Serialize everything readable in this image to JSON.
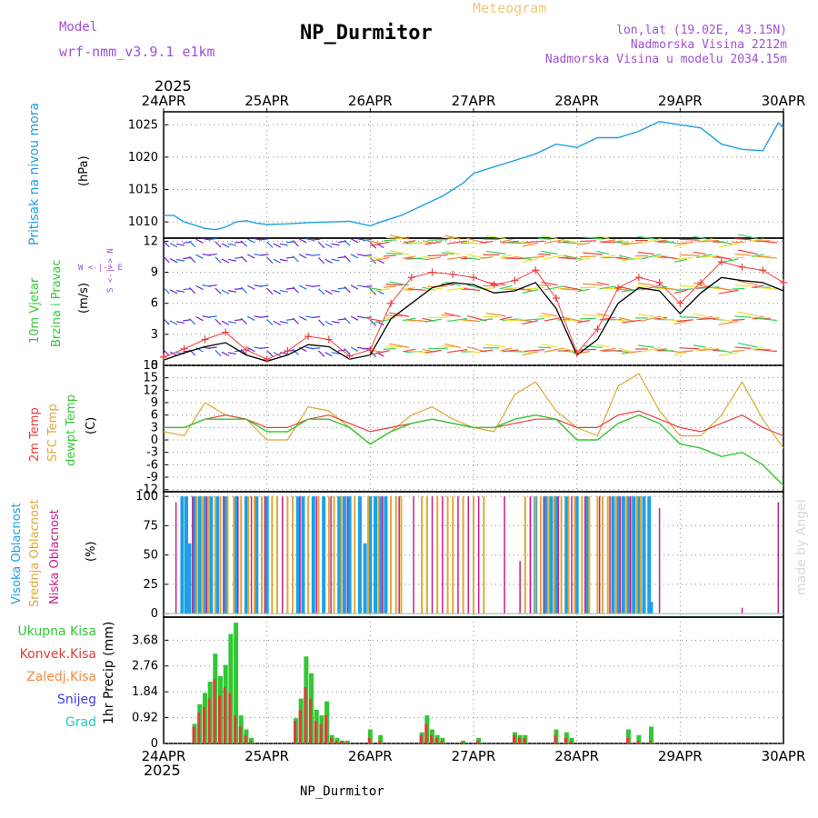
{
  "header": {
    "model_label": "Model",
    "model_name": "wrf-nmm_v3.9.1 e1km",
    "meteogram_label": "Meteogram",
    "station_title": "NP_Durmitor",
    "coords": "lon,lat (19.02E, 43.15N)",
    "elevation": "Nadmorska Visina 2212m",
    "model_elevation": "Nadmorska Visina u modelu 2034.15m",
    "year_top": "2025",
    "year_bottom": "2025",
    "footer": "NP_Durmitor",
    "watermark": "made by Angel"
  },
  "colors": {
    "pressure": "#1ca0e6",
    "wind_speed": "#000000",
    "wind_gust": "#f03c3c",
    "temp2m": "#f03c3c",
    "sfc_temp": "#e0a832",
    "dewpt": "#32c832",
    "cloud_high": "#1ca0e6",
    "cloud_mid": "#e0a832",
    "cloud_low": "#c81e8c",
    "precip_total": "#32c832",
    "precip_conv": "#e03c3c",
    "precip_frozen": "#f08c3c",
    "snow": "#3c3ce0",
    "graupel": "#1ec8c8",
    "purple_label": "#a050d2"
  },
  "chart_data": [
    {
      "type": "line",
      "panel": "pressure",
      "ylabel": "Pritisak na nivou mora",
      "unit": "(hPa)",
      "x_categories": [
        "24APR",
        "25APR",
        "26APR",
        "27APR",
        "28APR",
        "29APR",
        "30APR"
      ],
      "yticks": [
        1010,
        1015,
        1020,
        1025
      ],
      "ylim": [
        1007.5,
        1027
      ],
      "series": [
        {
          "x": [
            0,
            0.1,
            0.2,
            0.3,
            0.4,
            0.5,
            0.6,
            0.7,
            0.8,
            0.9,
            1.0,
            1.2,
            1.4,
            1.6,
            1.8,
            2.0,
            2.1,
            2.3,
            2.5,
            2.7,
            2.9,
            3.0,
            3.2,
            3.4,
            3.6,
            3.8,
            4.0,
            4.2,
            4.4,
            4.6,
            4.8,
            5.0,
            5.2,
            5.4,
            5.6,
            5.8,
            5.95,
            6.0
          ],
          "y": [
            1011,
            1011,
            1010,
            1009.5,
            1009,
            1008.8,
            1009.2,
            1010,
            1010.2,
            1009.8,
            1009.6,
            1009.7,
            1009.9,
            1010,
            1010.1,
            1009.4,
            1010,
            1011,
            1012.5,
            1014,
            1016,
            1017.5,
            1018.5,
            1019.5,
            1020.5,
            1022,
            1021.5,
            1023,
            1023,
            1024,
            1025.5,
            1025,
            1024.5,
            1022,
            1021.2,
            1021,
            1025.3,
            1024.5
          ]
        }
      ]
    },
    {
      "type": "line",
      "panel": "wind",
      "ylabel_line1": "10m Vjetar",
      "ylabel_line2": "Brzina i Pravac",
      "unit": "(m/s)",
      "dir_legend": "W <-|-> E",
      "dir_legend2": "S <-|-> N",
      "yticks": [
        0,
        3,
        6,
        9,
        12
      ],
      "ylim": [
        0,
        12.3
      ],
      "series": [
        {
          "name": "speed",
          "x": [
            0,
            0.2,
            0.4,
            0.6,
            0.8,
            1.0,
            1.2,
            1.4,
            1.6,
            1.8,
            2.0,
            2.2,
            2.4,
            2.6,
            2.8,
            3.0,
            3.2,
            3.4,
            3.6,
            3.8,
            4.0,
            4.2,
            4.4,
            4.6,
            4.8,
            5.0,
            5.2,
            5.4,
            5.6,
            5.8,
            6.0
          ],
          "y": [
            0.5,
            1.2,
            1.8,
            2.2,
            1.0,
            0.4,
            1.0,
            2.0,
            1.8,
            0.6,
            1.0,
            4.5,
            6.0,
            7.5,
            8.0,
            7.8,
            7.0,
            7.2,
            8.0,
            5.5,
            1.0,
            2.5,
            6.0,
            7.5,
            7.2,
            5.0,
            7.0,
            8.5,
            8.2,
            8.0,
            7.2
          ]
        },
        {
          "name": "gust",
          "x": [
            0,
            0.2,
            0.4,
            0.6,
            0.8,
            1.0,
            1.2,
            1.4,
            1.6,
            1.8,
            2.0,
            2.2,
            2.4,
            2.6,
            2.8,
            3.0,
            3.2,
            3.4,
            3.6,
            3.8,
            4.0,
            4.2,
            4.4,
            4.6,
            4.8,
            5.0,
            5.2,
            5.4,
            5.6,
            5.8,
            6.0
          ],
          "y": [
            0.8,
            1.6,
            2.5,
            3.2,
            1.5,
            0.6,
            1.4,
            2.8,
            2.5,
            0.9,
            1.5,
            6.0,
            8.5,
            9.0,
            8.8,
            8.5,
            7.8,
            8.2,
            9.2,
            6.5,
            1.2,
            3.5,
            7.5,
            8.5,
            8.0,
            6.0,
            8.0,
            10.0,
            9.5,
            9.2,
            8.0
          ]
        }
      ]
    },
    {
      "type": "line",
      "panel": "temperature",
      "ylabel_a": "2m Temp",
      "ylabel_b": "SFC Temp",
      "ylabel_c": "dewpt Temp",
      "unit": "(C)",
      "yticks": [
        -12,
        -9,
        -6,
        -3,
        0,
        3,
        6,
        9,
        12,
        15,
        18
      ],
      "ylim": [
        -12.5,
        18
      ],
      "series": [
        {
          "name": "2m",
          "x": [
            0,
            0.2,
            0.4,
            0.6,
            0.8,
            1.0,
            1.2,
            1.4,
            1.6,
            1.8,
            2.0,
            2.2,
            2.4,
            2.6,
            2.8,
            3.0,
            3.2,
            3.4,
            3.6,
            3.8,
            4.0,
            4.2,
            4.4,
            4.6,
            4.8,
            5.0,
            5.2,
            5.4,
            5.6,
            5.8,
            6.0
          ],
          "y": [
            3,
            3,
            5,
            6,
            5,
            3,
            3,
            5,
            6,
            4,
            2,
            3,
            4,
            5,
            4,
            3,
            3,
            4,
            5,
            5,
            3,
            3,
            6,
            7,
            5,
            3,
            2,
            4,
            6,
            3,
            1
          ]
        },
        {
          "name": "sfc",
          "x": [
            0,
            0.2,
            0.4,
            0.6,
            0.8,
            1.0,
            1.2,
            1.4,
            1.6,
            1.8,
            2.0,
            2.2,
            2.4,
            2.6,
            2.8,
            3.0,
            3.2,
            3.4,
            3.6,
            3.8,
            4.0,
            4.2,
            4.4,
            4.6,
            4.8,
            5.0,
            5.2,
            5.4,
            5.6,
            5.8,
            6.0
          ],
          "y": [
            2,
            1,
            9,
            6,
            5,
            0,
            0,
            8,
            7,
            3,
            -1,
            2,
            6,
            8,
            5,
            3,
            2,
            11,
            14,
            7,
            3,
            1,
            13,
            16,
            7,
            1,
            1,
            6,
            14,
            5,
            -2
          ]
        },
        {
          "name": "dewpt",
          "x": [
            0,
            0.2,
            0.4,
            0.6,
            0.8,
            1.0,
            1.2,
            1.4,
            1.6,
            1.8,
            2.0,
            2.2,
            2.4,
            2.6,
            2.8,
            3.0,
            3.2,
            3.4,
            3.6,
            3.8,
            4.0,
            4.2,
            4.4,
            4.6,
            4.8,
            5.0,
            5.2,
            5.4,
            5.6,
            5.8,
            6.0
          ],
          "y": [
            3,
            3,
            5,
            5,
            5,
            2,
            2,
            5,
            5,
            3,
            -1,
            2,
            4,
            5,
            4,
            3,
            3,
            5,
            6,
            5,
            0,
            0,
            4,
            6,
            4,
            -1,
            -2,
            -4,
            -3,
            -6,
            -11
          ]
        }
      ]
    },
    {
      "type": "bar",
      "panel": "clouds",
      "ylabel_a": "Visoka Oblacnost",
      "ylabel_b": "Srednja Oblacnost",
      "ylabel_c": "Niska Oblacnost",
      "unit": "(%)",
      "yticks": [
        0,
        25,
        50,
        75,
        100
      ],
      "ylim": [
        -3,
        104
      ],
      "high_x": [
        0.18,
        0.22,
        0.25,
        0.3,
        0.35,
        0.4,
        0.46,
        0.52,
        0.6,
        0.7,
        0.8,
        0.9,
        1.0,
        1.3,
        1.35,
        1.45,
        1.55,
        1.7,
        1.75,
        1.8,
        1.9,
        1.95,
        2.0,
        2.05,
        2.1,
        2.15,
        3.6,
        3.7,
        3.75,
        3.8,
        3.9,
        4.0,
        4.1,
        4.35,
        4.4,
        4.45,
        4.5,
        4.55,
        4.6,
        4.65,
        4.7,
        4.72
      ],
      "high_y": [
        100,
        100,
        60,
        100,
        100,
        100,
        100,
        100,
        100,
        100,
        100,
        100,
        100,
        100,
        100,
        100,
        100,
        100,
        100,
        100,
        100,
        60,
        100,
        100,
        100,
        100,
        100,
        100,
        100,
        100,
        100,
        100,
        100,
        100,
        100,
        100,
        100,
        100,
        100,
        100,
        100,
        10
      ],
      "mid_x": [
        0.32,
        0.38,
        0.44,
        0.5,
        0.55,
        0.62,
        0.68,
        0.75,
        0.82,
        0.88,
        0.95,
        1.05,
        1.1,
        1.2,
        1.25,
        1.4,
        1.5,
        1.6,
        1.65,
        1.72,
        1.85,
        1.98,
        2.08,
        2.2,
        2.25,
        2.3,
        2.5,
        2.55,
        2.65,
        2.75,
        2.8,
        2.9,
        3.0,
        3.1,
        3.5,
        3.55,
        3.6,
        3.65,
        3.72,
        3.78,
        3.85,
        3.92,
        3.98,
        4.05,
        4.12,
        4.2,
        4.25,
        4.3,
        4.38,
        4.48,
        4.58,
        4.62
      ],
      "mid_y": [
        100,
        100,
        100,
        100,
        100,
        100,
        100,
        100,
        100,
        100,
        100,
        100,
        100,
        100,
        100,
        100,
        100,
        100,
        100,
        100,
        100,
        100,
        100,
        100,
        100,
        100,
        100,
        100,
        100,
        100,
        100,
        100,
        100,
        100,
        100,
        100,
        100,
        100,
        100,
        100,
        100,
        100,
        100,
        100,
        100,
        100,
        100,
        100,
        100,
        100,
        100,
        100
      ],
      "low_x": [
        0.12,
        0.28,
        0.42,
        0.58,
        0.72,
        0.85,
        0.98,
        1.15,
        1.32,
        1.48,
        1.62,
        1.78,
        2.12,
        2.28,
        2.42,
        2.6,
        2.7,
        2.85,
        2.95,
        3.05,
        3.3,
        3.45,
        3.55,
        3.68,
        3.82,
        3.95,
        4.08,
        4.22,
        4.32,
        4.42,
        4.52,
        4.8,
        5.6,
        5.95
      ],
      "low_y": [
        95,
        100,
        100,
        100,
        100,
        100,
        100,
        100,
        100,
        100,
        100,
        100,
        100,
        100,
        100,
        100,
        100,
        100,
        100,
        100,
        100,
        45,
        100,
        100,
        100,
        100,
        100,
        100,
        100,
        100,
        100,
        90,
        5,
        95
      ]
    },
    {
      "type": "bar",
      "panel": "precip",
      "legend": [
        "Ukupna Kisa",
        "Konvek.Kisa",
        "Zaledj.Kisa",
        "Snijeg",
        "Grad"
      ],
      "ylabel": "1hr Precip (mm)",
      "yticks": [
        0,
        0.92,
        1.84,
        2.76,
        3.68
      ],
      "ylim": [
        0,
        4.5
      ],
      "x": [
        0.3,
        0.35,
        0.4,
        0.45,
        0.5,
        0.55,
        0.6,
        0.65,
        0.7,
        0.75,
        0.8,
        0.85,
        1.28,
        1.33,
        1.38,
        1.43,
        1.48,
        1.53,
        1.58,
        1.63,
        1.68,
        1.73,
        1.78,
        2.0,
        2.1,
        2.5,
        2.55,
        2.6,
        2.65,
        2.7,
        2.9,
        3.05,
        3.4,
        3.45,
        3.5,
        3.8,
        3.9,
        3.95,
        4.5,
        4.6,
        4.72
      ],
      "total": [
        0.7,
        1.4,
        1.8,
        2.2,
        3.2,
        2.4,
        2.8,
        3.9,
        4.3,
        1.0,
        0.5,
        0.2,
        0.9,
        1.6,
        3.1,
        2.5,
        1.2,
        1.0,
        1.5,
        0.3,
        0.2,
        0.1,
        0.1,
        0.5,
        0.3,
        0.4,
        1.0,
        0.5,
        0.3,
        0.2,
        0.1,
        0.2,
        0.4,
        0.3,
        0.3,
        0.5,
        0.4,
        0.2,
        0.5,
        0.3,
        0.6
      ],
      "conv": [
        0.6,
        1.1,
        1.3,
        1.6,
        2.3,
        1.7,
        2.0,
        1.8,
        1.0,
        0.6,
        0.3,
        0.1,
        0.8,
        1.2,
        2.0,
        1.6,
        0.8,
        0.7,
        1.0,
        0.2,
        0.1,
        0.1,
        0.05,
        0.2,
        0.1,
        0.3,
        0.7,
        0.3,
        0.2,
        0.1,
        0.05,
        0.1,
        0.3,
        0.2,
        0.2,
        0.3,
        0.2,
        0.1,
        0.2,
        0.1,
        0.1
      ]
    }
  ]
}
